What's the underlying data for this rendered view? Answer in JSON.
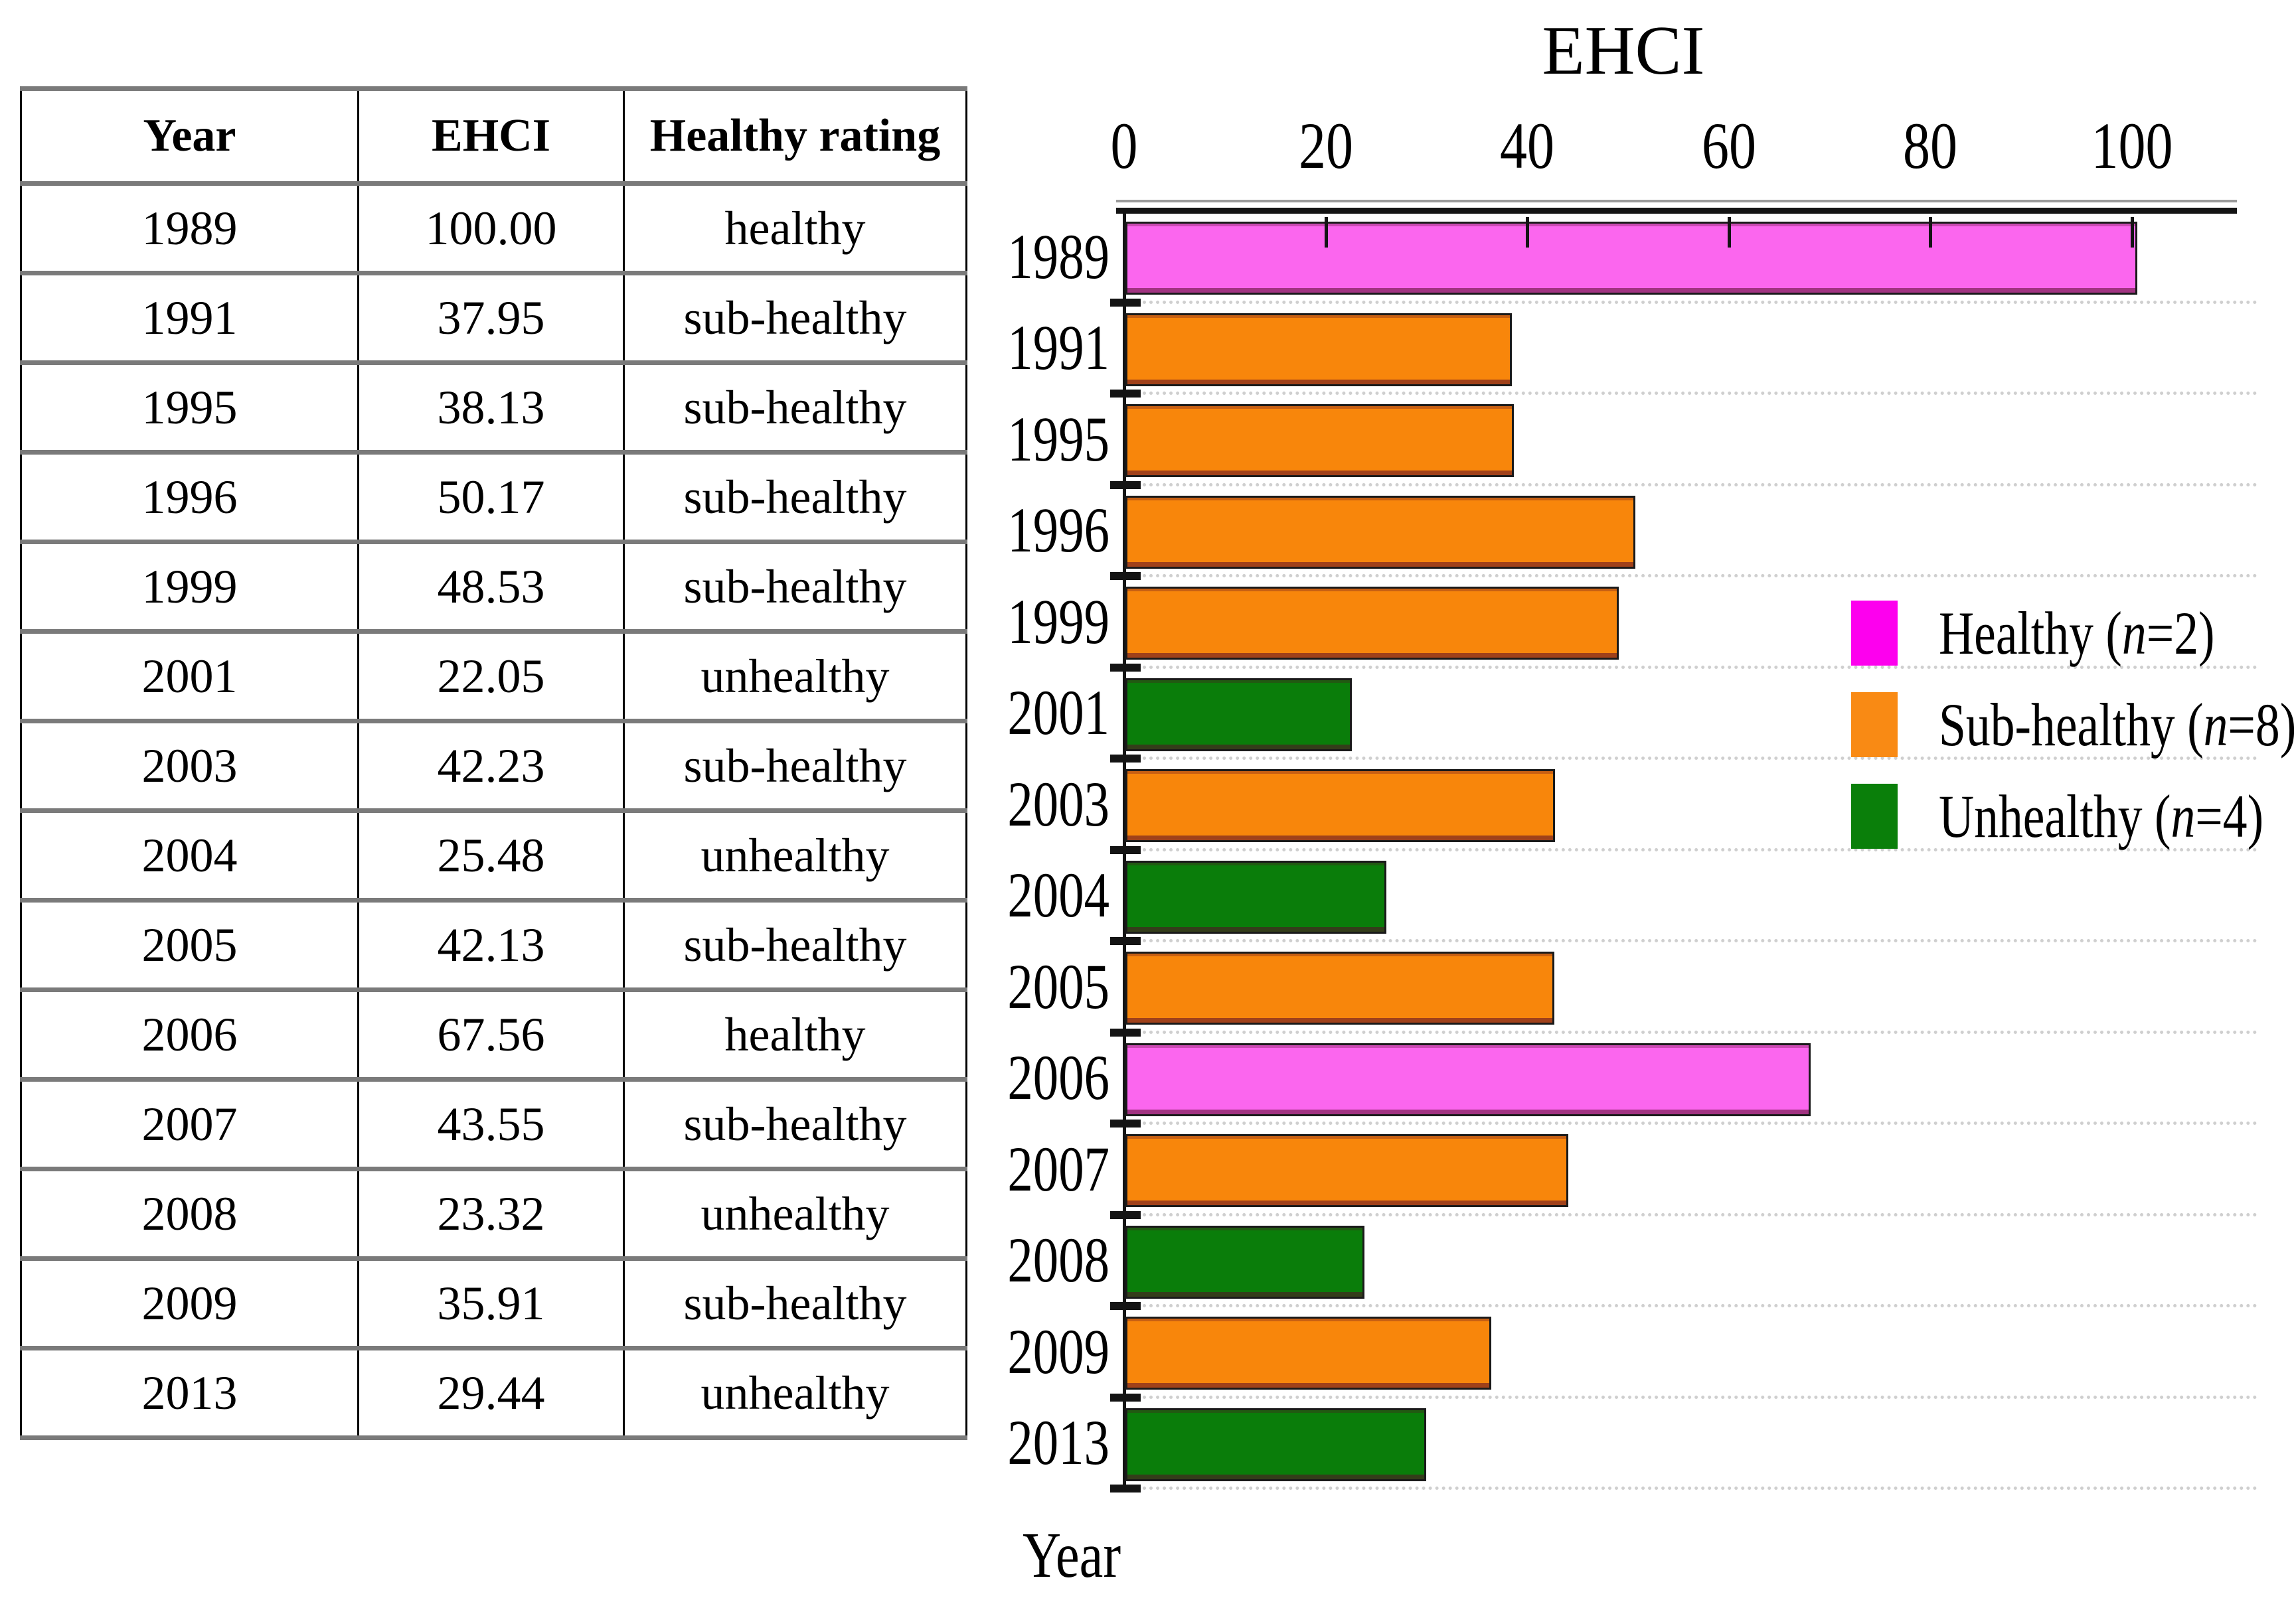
{
  "table": {
    "headers": [
      "Year",
      "EHCI",
      "Healthy rating"
    ],
    "rows": [
      {
        "year": "1989",
        "ehci": "100.00",
        "rating": "healthy"
      },
      {
        "year": "1991",
        "ehci": "37.95",
        "rating": "sub-healthy"
      },
      {
        "year": "1995",
        "ehci": "38.13",
        "rating": "sub-healthy"
      },
      {
        "year": "1996",
        "ehci": "50.17",
        "rating": "sub-healthy"
      },
      {
        "year": "1999",
        "ehci": "48.53",
        "rating": "sub-healthy"
      },
      {
        "year": "2001",
        "ehci": "22.05",
        "rating": "unhealthy"
      },
      {
        "year": "2003",
        "ehci": "42.23",
        "rating": "sub-healthy"
      },
      {
        "year": "2004",
        "ehci": "25.48",
        "rating": "unhealthy"
      },
      {
        "year": "2005",
        "ehci": "42.13",
        "rating": "sub-healthy"
      },
      {
        "year": "2006",
        "ehci": "67.56",
        "rating": "healthy"
      },
      {
        "year": "2007",
        "ehci": "43.55",
        "rating": "sub-healthy"
      },
      {
        "year": "2008",
        "ehci": "23.32",
        "rating": "unhealthy"
      },
      {
        "year": "2009",
        "ehci": "35.91",
        "rating": "sub-healthy"
      },
      {
        "year": "2013",
        "ehci": "29.44",
        "rating": "unhealthy"
      }
    ]
  },
  "chart_data": {
    "type": "bar",
    "orientation": "horizontal",
    "title": "EHCI",
    "ylabel": "Year",
    "x_ticks": [
      0,
      20,
      40,
      60,
      80,
      100
    ],
    "xlim": [
      0,
      110
    ],
    "grid": "dotted horizontal separators between categories",
    "legend_position": "right",
    "categories": [
      "1989",
      "1991",
      "1995",
      "1996",
      "1999",
      "2001",
      "2003",
      "2004",
      "2005",
      "2006",
      "2007",
      "2008",
      "2009",
      "2013"
    ],
    "values": [
      100.0,
      37.95,
      38.13,
      50.17,
      48.53,
      22.05,
      42.23,
      25.48,
      42.13,
      67.56,
      43.55,
      23.32,
      35.91,
      29.44
    ],
    "ratings": [
      "healthy",
      "sub-healthy",
      "sub-healthy",
      "sub-healthy",
      "sub-healthy",
      "unhealthy",
      "sub-healthy",
      "unhealthy",
      "sub-healthy",
      "healthy",
      "sub-healthy",
      "unhealthy",
      "sub-healthy",
      "unhealthy"
    ],
    "legend": [
      {
        "key": "healthy",
        "name": "Healthy",
        "var": "n",
        "n": "2",
        "display": "Healthy (n=2)",
        "swatch_color": "#fd00ee",
        "bar_color": "#fb66ee"
      },
      {
        "key": "sub-healthy",
        "name": "Sub-healthy",
        "var": "n",
        "n": "8",
        "display": "Sub-healthy (n=8)",
        "swatch_color": "#f98a14",
        "bar_color": "#f8860b"
      },
      {
        "key": "unhealthy",
        "name": "Unhealthy",
        "var": "n",
        "n": "4",
        "display": "Unhealthy (n=4)",
        "swatch_color": "#0a7f0a",
        "bar_color": "#0a7d0a"
      }
    ]
  },
  "colors": {
    "background": "#ffffff",
    "axis": "#141414",
    "gridline": "#cfcfcf",
    "table_horizontal_border": "#7a7a7a",
    "table_vertical_border": "#000000"
  }
}
